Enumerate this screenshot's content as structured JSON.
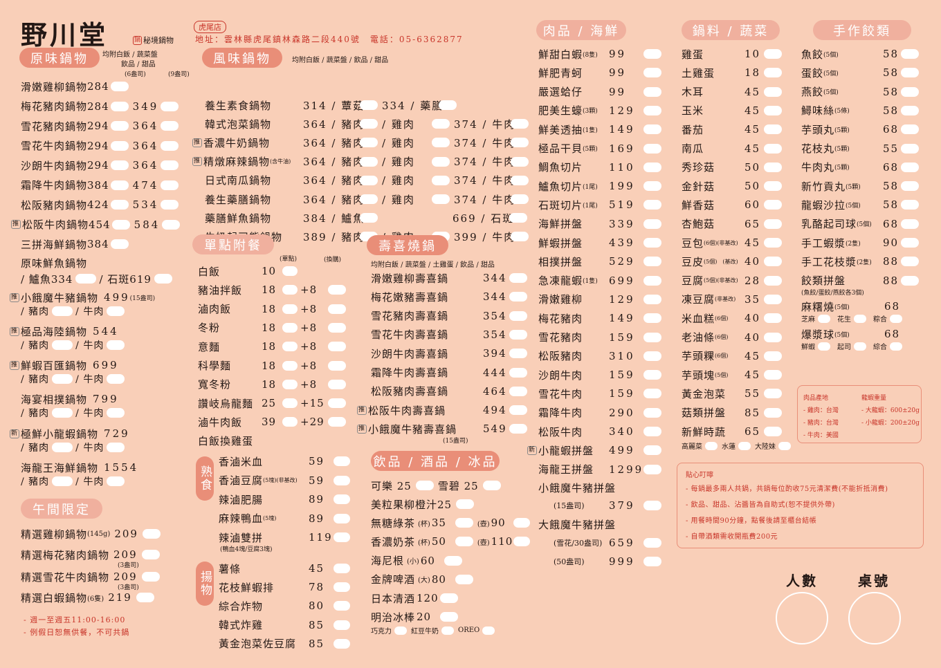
{
  "header": {
    "logo": "野川堂",
    "logo_sub": "秘境鍋物",
    "branch": "虎尾店",
    "address": "地址：雲林縣虎尾鎮林森路二段440號　電話：05-6362877"
  },
  "original": {
    "title": "原味鍋物",
    "note1": "均附白飯 / 蔬菜盤",
    "note2": "飲品 / 甜品",
    "col1": "(6盎司)",
    "col2": "(9盎司)",
    "items": [
      {
        "name": "滑嫩雞柳鍋物",
        "p1": "284",
        "p2": ""
      },
      {
        "name": "梅花豬肉鍋物",
        "p1": "284",
        "p2": "349"
      },
      {
        "name": "雪花豬肉鍋物",
        "p1": "294",
        "p2": "364"
      },
      {
        "name": "雪花牛肉鍋物",
        "p1": "294",
        "p2": "364"
      },
      {
        "name": "沙朗牛肉鍋物",
        "p1": "294",
        "p2": "364"
      },
      {
        "name": "霜降牛肉鍋物",
        "p1": "384",
        "p2": "474"
      },
      {
        "name": "松阪豬肉鍋物",
        "p1": "424",
        "p2": "534"
      },
      {
        "name": "松阪牛肉鍋物",
        "p1": "454",
        "p2": "584",
        "tag": "推"
      },
      {
        "name": "三拼海鮮鍋物",
        "p1": "384",
        "p2": ""
      }
    ]
  },
  "fish": {
    "name": "原味鮮魚鍋物",
    "line": "/ 鱸魚334",
    "line2": "/ 石斑619"
  },
  "specials": [
    {
      "name": "小餓魔牛豬鍋物",
      "price": "499",
      "note": "(15盎司)",
      "tag": "推",
      "a": "/ 豬肉",
      "b": "/ 牛肉"
    },
    {
      "name": "極品海陸鍋物",
      "price": "544",
      "note": "",
      "tag": "推",
      "a": "/ 豬肉",
      "b": "/ 牛肉"
    },
    {
      "name": "鮮蝦百匯鍋物",
      "price": "699",
      "note": "",
      "tag": "推",
      "a": "/ 豬肉",
      "b": "/ 牛肉"
    },
    {
      "name": "海宴相撲鍋物",
      "price": "799",
      "note": "",
      "tag": "",
      "a": "/ 豬肉",
      "b": "/ 牛肉"
    },
    {
      "name": "極鮮小龍蝦鍋物",
      "price": "729",
      "note": "",
      "tag": "新",
      "a": "/ 豬肉",
      "b": "/ 牛肉"
    },
    {
      "name": "海龍王海鮮鍋物",
      "price": "1554",
      "note": "",
      "tag": "",
      "a": "/ 豬肉",
      "b": "/ 牛肉"
    }
  ],
  "lunch": {
    "title": "午間限定",
    "items": [
      {
        "name": "精選雞柳鍋物",
        "note": "(145g)",
        "price": "209",
        "sub": ""
      },
      {
        "name": "精選梅花豬肉鍋物",
        "note": "",
        "price": "209",
        "sub": "(3盎司)"
      },
      {
        "name": "精選雪花牛肉鍋物",
        "note": "",
        "price": "209",
        "sub": "(3盎司)"
      },
      {
        "name": "精選白蝦鍋物",
        "note": "(6隻)",
        "price": "219",
        "sub": ""
      }
    ],
    "note1": "- 週一至週五11:00-16:00",
    "note2": "- 例假日恕無供餐，不可共鍋"
  },
  "flavor": {
    "title": "風味鍋物",
    "note": "均附白飯 / 蔬菜盤 / 飲品 / 甜品",
    "items": [
      {
        "name": "養生素食鍋物",
        "tag": "",
        "small": "",
        "a": "314 / 蕈菇",
        "b": "334 / 藥膳",
        "c": ""
      },
      {
        "name": "韓式泡菜鍋物",
        "tag": "",
        "small": "",
        "a": "364 / 豬肉",
        "b": "/ 雞肉",
        "c": "374 / 牛肉"
      },
      {
        "name": "香濃牛奶鍋物",
        "tag": "推",
        "small": "",
        "a": "364 / 豬肉",
        "b": "/ 雞肉",
        "c": "374 / 牛肉"
      },
      {
        "name": "精燉麻辣鍋物",
        "tag": "推",
        "small": "(含牛油)",
        "a": "364 / 豬肉",
        "b": "/ 雞肉",
        "c": "374 / 牛肉"
      },
      {
        "name": "日式南瓜鍋物",
        "tag": "",
        "small": "",
        "a": "364 / 豬肉",
        "b": "/ 雞肉",
        "c": "374 / 牛肉"
      },
      {
        "name": "養生藥膳鍋物",
        "tag": "",
        "small": "",
        "a": "364 / 豬肉",
        "b": "/ 雞肉",
        "c": "374 / 牛肉"
      },
      {
        "name": "藥膳鮮魚鍋物",
        "tag": "",
        "small": "",
        "a": "384 / 鱸魚",
        "b": "",
        "c": "669 / 石斑"
      },
      {
        "name": "牛奶起司熊鍋物",
        "tag": "",
        "small": "",
        "a": "389 / 豬肉",
        "b": "/ 雞肉",
        "c": "399 / 牛肉"
      }
    ]
  },
  "single": {
    "title": "單點附餐",
    "col1": "(單點)",
    "col2": "(換購)",
    "items": [
      {
        "name": "白飯",
        "p": "10",
        "x": ""
      },
      {
        "name": "豬油拌飯",
        "p": "18",
        "x": "+8"
      },
      {
        "name": "滷肉飯",
        "p": "18",
        "x": "+8"
      },
      {
        "name": "冬粉",
        "p": "18",
        "x": "+8"
      },
      {
        "name": "意麵",
        "p": "18",
        "x": "+8"
      },
      {
        "name": "科學麵",
        "p": "18",
        "x": "+8"
      },
      {
        "name": "寬冬粉",
        "p": "18",
        "x": "+8"
      },
      {
        "name": "讚岐烏龍麵",
        "p": "25",
        "x": "+15"
      },
      {
        "name": "滷牛肉飯",
        "p": "39",
        "x": "+29"
      },
      {
        "name": "白飯換雞蛋",
        "p": "",
        "x": ""
      }
    ]
  },
  "cooked": {
    "label": "熟食",
    "items": [
      {
        "name": "香滷米血",
        "small": "",
        "p": "59"
      },
      {
        "name": "香滷豆腐",
        "small": "(5塊)(非基改)",
        "p": "59"
      },
      {
        "name": "辣滷肥腸",
        "small": "",
        "p": "89"
      },
      {
        "name": "麻辣鴨血",
        "small": "(5塊)",
        "p": "89"
      },
      {
        "name": "辣滷雙拼",
        "small": "",
        "p": "119"
      }
    ],
    "note": "(鴨血4塊/豆腐3塊)"
  },
  "fried": {
    "label": "揚物",
    "items": [
      {
        "name": "薯條",
        "p": "45"
      },
      {
        "name": "花枝鮮蝦排",
        "p": "78"
      },
      {
        "name": "綜合炸物",
        "p": "80"
      },
      {
        "name": "韓式炸雞",
        "p": "85"
      },
      {
        "name": "黃金泡菜佐豆腐",
        "p": "85"
      }
    ]
  },
  "sukiyaki": {
    "title": "壽喜燒鍋",
    "note": "均附白飯 / 蔬菜盤 / 土雞蛋 / 飲品 / 甜品",
    "items": [
      {
        "name": "滑嫩雞柳壽喜鍋",
        "tag": "",
        "p": "344"
      },
      {
        "name": "梅花嫩豬壽喜鍋",
        "tag": "",
        "p": "344"
      },
      {
        "name": "雪花豬肉壽喜鍋",
        "tag": "",
        "p": "354"
      },
      {
        "name": "雪花牛肉壽喜鍋",
        "tag": "",
        "p": "354"
      },
      {
        "name": "沙朗牛肉壽喜鍋",
        "tag": "",
        "p": "394"
      },
      {
        "name": "霜降牛肉壽喜鍋",
        "tag": "",
        "p": "444"
      },
      {
        "name": "松阪豬肉壽喜鍋",
        "tag": "",
        "p": "464"
      },
      {
        "name": "松阪牛肉壽喜鍋",
        "tag": "推",
        "p": "494"
      },
      {
        "name": "小餓魔牛豬壽喜鍋",
        "tag": "推",
        "p": "549"
      }
    ],
    "last_note": "(15盎司)"
  },
  "drinks": {
    "title": "飲品 / 酒品 / 冰品",
    "cola": "可樂 25",
    "sprite": "雪碧 25",
    "items": [
      {
        "name": "美粒果柳橙汁25",
        "s": "",
        "sp": "",
        "l": "",
        "lp": ""
      },
      {
        "name": "無糖綠茶",
        "s": "(杯)",
        "sp": "35",
        "l": "(壺)",
        "lp": "90"
      },
      {
        "name": "香濃奶茶",
        "s": "(杯)",
        "sp": "50",
        "l": "(壺)",
        "lp": "110"
      },
      {
        "name": "海尼根",
        "s": "(小)",
        "sp": "60",
        "l": "",
        "lp": ""
      },
      {
        "name": "金牌啤酒",
        "s": "(大)",
        "sp": "80",
        "l": "",
        "lp": ""
      },
      {
        "name": "日本清酒",
        "s": "",
        "sp": "120",
        "l": "",
        "lp": ""
      },
      {
        "name": "明治冰棒",
        "s": "",
        "sp": "20",
        "l": "",
        "lp": ""
      }
    ],
    "flavors": [
      "巧克力",
      "紅豆牛奶",
      "OREO"
    ]
  },
  "meat": {
    "title": "肉品 / 海鮮",
    "items": [
      {
        "name": "鮮甜白蝦",
        "s": "(8隻)",
        "p": "99",
        "tag": ""
      },
      {
        "name": "鮮肥青蚵",
        "s": "",
        "p": "99",
        "tag": ""
      },
      {
        "name": "嚴選蛤仔",
        "s": "",
        "p": "99",
        "tag": ""
      },
      {
        "name": "肥美生蠔",
        "s": "(3顆)",
        "p": "129",
        "tag": ""
      },
      {
        "name": "鮮美透抽",
        "s": "(1隻)",
        "p": "149",
        "tag": ""
      },
      {
        "name": "極品干貝",
        "s": "(5顆)",
        "p": "169",
        "tag": ""
      },
      {
        "name": "鯛魚切片",
        "s": "",
        "p": "110",
        "tag": ""
      },
      {
        "name": "鱸魚切片",
        "s": "(1尾)",
        "p": "199",
        "tag": ""
      },
      {
        "name": "石斑切片",
        "s": "(1尾)",
        "p": "519",
        "tag": ""
      },
      {
        "name": "海鮮拼盤",
        "s": "",
        "p": "339",
        "tag": ""
      },
      {
        "name": "鮮蝦拼盤",
        "s": "",
        "p": "439",
        "tag": ""
      },
      {
        "name": "相撲拼盤",
        "s": "",
        "p": "529",
        "tag": ""
      },
      {
        "name": "急凍龍蝦",
        "s": "(1隻)",
        "p": "699",
        "tag": ""
      },
      {
        "name": "滑嫩雞柳",
        "s": "",
        "p": "129",
        "tag": ""
      },
      {
        "name": "梅花豬肉",
        "s": "",
        "p": "149",
        "tag": ""
      },
      {
        "name": "雪花豬肉",
        "s": "",
        "p": "159",
        "tag": ""
      },
      {
        "name": "松阪豬肉",
        "s": "",
        "p": "310",
        "tag": ""
      },
      {
        "name": "沙朗牛肉",
        "s": "",
        "p": "159",
        "tag": ""
      },
      {
        "name": "雪花牛肉",
        "s": "",
        "p": "159",
        "tag": ""
      },
      {
        "name": "霜降牛肉",
        "s": "",
        "p": "290",
        "tag": ""
      },
      {
        "name": "松阪牛肉",
        "s": "",
        "p": "340",
        "tag": ""
      },
      {
        "name": "小龍蝦拼盤",
        "s": "",
        "p": "499",
        "tag": "新"
      },
      {
        "name": "海龍王拼盤",
        "s": "",
        "p": "1299",
        "tag": ""
      },
      {
        "name": "小餓魔牛豬拼盤",
        "s": "",
        "p": "",
        "tag": ""
      }
    ],
    "extra": [
      {
        "s": "(15盎司)",
        "p": "379"
      },
      {
        "name": "大餓魔牛豬拼盤"
      },
      {
        "s": "(雪花/30盎司)",
        "p": "659"
      },
      {
        "s": "(50盎司)",
        "p": "999"
      }
    ]
  },
  "veg": {
    "title": "鍋料 / 蔬菜",
    "items": [
      {
        "name": "雞蛋",
        "s": "",
        "p": "10"
      },
      {
        "name": "土雞蛋",
        "s": "",
        "p": "18"
      },
      {
        "name": "木耳",
        "s": "",
        "p": "45"
      },
      {
        "name": "玉米",
        "s": "",
        "p": "45"
      },
      {
        "name": "番茄",
        "s": "",
        "p": "45"
      },
      {
        "name": "南瓜",
        "s": "",
        "p": "45"
      },
      {
        "name": "秀珍菇",
        "s": "",
        "p": "50"
      },
      {
        "name": "金針菇",
        "s": "",
        "p": "50"
      },
      {
        "name": "鮮香菇",
        "s": "",
        "p": "60"
      },
      {
        "name": "杏鮑菇",
        "s": "",
        "p": "65"
      },
      {
        "name": "豆包",
        "s": "(6個)(非基改)",
        "p": "45"
      },
      {
        "name": "豆皮",
        "s": "(5個)　(基改)",
        "p": "40"
      },
      {
        "name": "豆腐",
        "s": "(5個)(非基改)",
        "p": "28"
      },
      {
        "name": "凍豆腐",
        "s": "(非基改)",
        "p": "35"
      },
      {
        "name": "米血糕",
        "s": "(6個)",
        "p": "40"
      },
      {
        "name": "老油條",
        "s": "(6個)",
        "p": "40"
      },
      {
        "name": "芋頭粿",
        "s": "(6個)",
        "p": "45"
      },
      {
        "name": "芋頭塊",
        "s": "(5個)",
        "p": "45"
      },
      {
        "name": "黃金泡菜",
        "s": "",
        "p": "55"
      },
      {
        "name": "菇類拼盤",
        "s": "",
        "p": "85"
      },
      {
        "name": "新鮮時蔬",
        "s": "",
        "p": "65"
      }
    ],
    "veg_opts": [
      "高麗菜",
      "水蓮",
      "大陸妹"
    ]
  },
  "dumplings": {
    "title": "手作餃類",
    "items": [
      {
        "name": "魚餃",
        "s": "(5個)",
        "p": "58"
      },
      {
        "name": "蛋餃",
        "s": "(5個)",
        "p": "58"
      },
      {
        "name": "燕餃",
        "s": "(5個)",
        "p": "58"
      },
      {
        "name": "鱘味絲",
        "s": "(5條)",
        "p": "58"
      },
      {
        "name": "芋頭丸",
        "s": "(5顆)",
        "p": "68"
      },
      {
        "name": "花枝丸",
        "s": "(5顆)",
        "p": "55"
      },
      {
        "name": "牛肉丸",
        "s": "(5顆)",
        "p": "68"
      },
      {
        "name": "新竹貢丸",
        "s": "(5顆)",
        "p": "58"
      },
      {
        "name": "龍蝦沙拉",
        "s": "(5個)",
        "p": "58"
      },
      {
        "name": "乳酪起司球",
        "s": "(5個)",
        "p": "68"
      },
      {
        "name": "手工蝦漿",
        "s": "(2隻)",
        "p": "90"
      },
      {
        "name": "手工花枝漿",
        "s": "(2隻)",
        "p": "88"
      },
      {
        "name": "餃類拼盤",
        "s": "",
        "p": "88"
      }
    ],
    "combo_note": "(魚餃/蛋餃/燕餃各3個)",
    "mochi": {
      "name": "麻糬燒",
      "s": "(5個)",
      "p": "68",
      "opts": [
        "芝麻",
        "花生",
        "粽合"
      ]
    },
    "bomb": {
      "name": "爆漿球",
      "s": "(5個)",
      "p": "68",
      "opts": [
        "鮮蝦",
        "起司",
        "綜合"
      ]
    }
  },
  "origin": {
    "h1": "肉品產地",
    "h2": "龍蝦重量",
    "l1": "- 雞肉：台灣",
    "l2": "- 豬肉：台灣",
    "l3": "- 牛肉：美國",
    "w1": "- 大龍蝦：600±20g",
    "w2": "- 小龍蝦：200±20g"
  },
  "reminder": {
    "title": "貼心叮嚀",
    "lines": [
      "- 每鍋最多兩人共鍋，共鍋每位酌收75元清潔費(不能折抵消費)",
      "- 飲品、甜品、沾醬皆為自助式(恕不提供外帶)",
      "- 用餐時間90分鐘，點餐後請至櫃台結帳",
      "- 自帶酒類需收開瓶費200元"
    ]
  },
  "footer": {
    "people": "人數",
    "table": "桌號"
  }
}
